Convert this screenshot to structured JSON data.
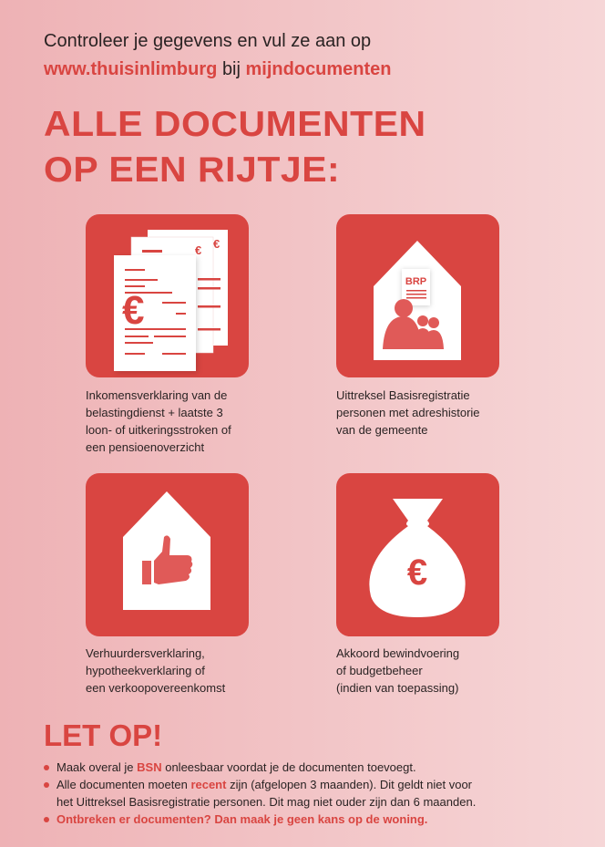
{
  "intro": {
    "line1": "Controleer je gegevens en vul ze aan op",
    "link": "www.thuisinlimburg",
    "joiner": "bij",
    "section": "mijndocumenten"
  },
  "title": {
    "line1": "ALLE DOCUMENTEN",
    "line2": "OP EEN RIJTJE:"
  },
  "documents": [
    {
      "icon": "income-documents-icon",
      "badge": "€",
      "caption": [
        "Inkomensverklaring van de",
        "belastingdienst + laatste 3",
        "loon- of uitkeringsstroken of",
        "een pensioenoverzicht"
      ]
    },
    {
      "icon": "brp-house-icon",
      "badge": "BRP",
      "caption": [
        "Uittreksel Basisregistratie",
        "personen met adreshistorie",
        "van de gemeente"
      ]
    },
    {
      "icon": "thumbs-up-house-icon",
      "caption": [
        "Verhuurdersverklaring,",
        "hypotheekverklaring of",
        "een verkoopovereenkomst"
      ]
    },
    {
      "icon": "money-bag-icon",
      "badge": "€",
      "caption": [
        "Akkoord bewindvoering",
        "of budgetbeheer",
        "(indien van toepassing)"
      ]
    }
  ],
  "notice": {
    "title": "LET OP!",
    "items": [
      {
        "pre": "Maak overal je ",
        "em": "BSN",
        "post": " onleesbaar voordat je de documenten toevoegt."
      },
      {
        "pre": "Alle documenten moeten ",
        "em": "recent",
        "post": " zijn (afgelopen 3 maanden). Dit geldt niet voor",
        "line2": "het Uittreksel Basisregistratie personen. Dit mag niet ouder zijn dan 6 maanden."
      },
      {
        "em": "Ontbreken er documenten? Dan maak je geen kans op de woning."
      }
    ]
  },
  "colors": {
    "accent": "#d94541",
    "background_left": "#eeb2b5",
    "background_right": "#f6d6d7"
  }
}
